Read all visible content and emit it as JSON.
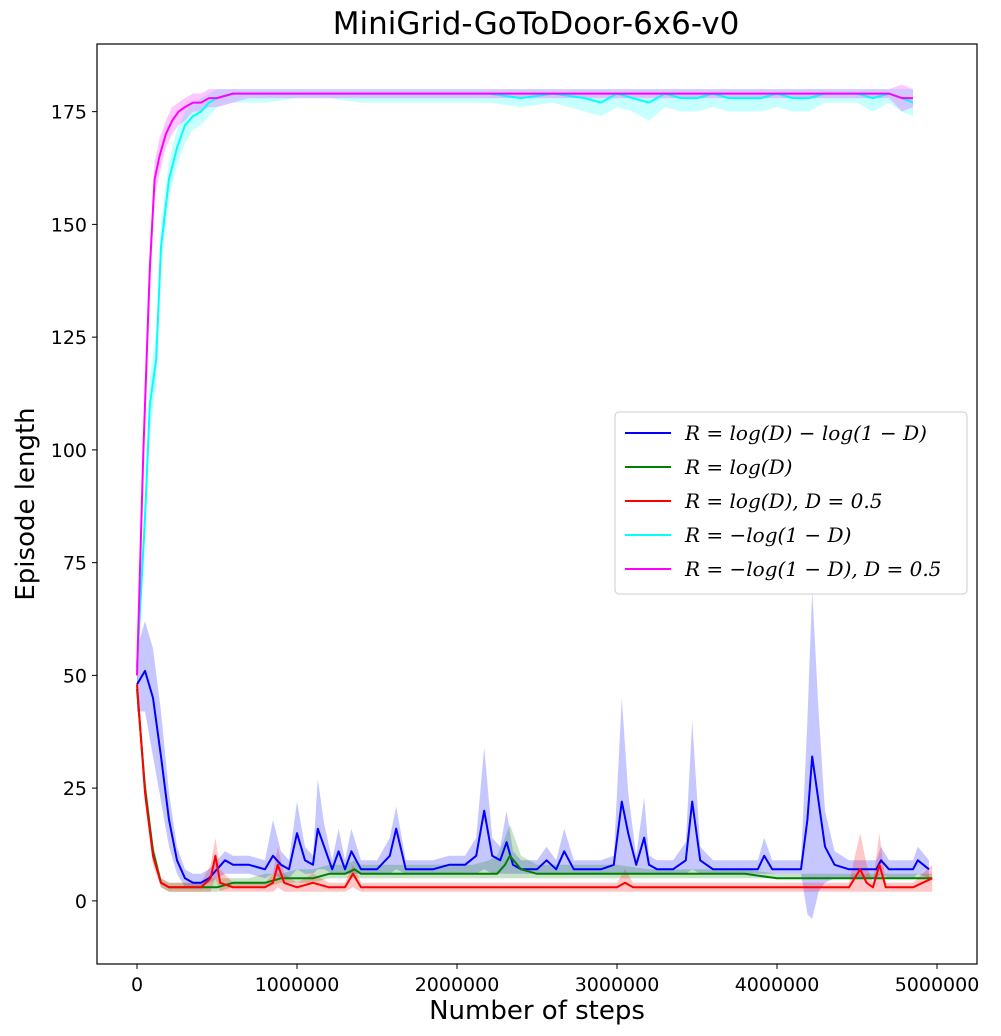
{
  "chart_data": {
    "type": "line",
    "title": "MiniGrid-GoToDoor-6x6-v0",
    "xlabel": "Number of steps",
    "ylabel": "Episode length",
    "xlim": [
      -250000,
      5250000
    ],
    "ylim": [
      -14,
      190
    ],
    "xticks": [
      0,
      1000000,
      2000000,
      3000000,
      4000000,
      5000000
    ],
    "xtick_labels": [
      "0",
      "1000000",
      "2000000",
      "3000000",
      "4000000",
      "5000000"
    ],
    "yticks": [
      0,
      25,
      50,
      75,
      100,
      125,
      150,
      175
    ],
    "ytick_labels": [
      "0",
      "25",
      "50",
      "75",
      "100",
      "125",
      "150",
      "175"
    ],
    "grid": false,
    "legend_position": "center-right",
    "series": [
      {
        "name": "R = log(D) − log(1 − D)",
        "color": "#0000ff",
        "x": [
          0,
          50000,
          100000,
          150000,
          200000,
          250000,
          300000,
          350000,
          400000,
          450000,
          500000,
          550000,
          600000,
          700000,
          800000,
          850000,
          900000,
          950000,
          1000000,
          1050000,
          1100000,
          1130000,
          1170000,
          1220000,
          1260000,
          1300000,
          1340000,
          1400000,
          1500000,
          1580000,
          1620000,
          1680000,
          1750000,
          1850000,
          1950000,
          2050000,
          2120000,
          2170000,
          2220000,
          2270000,
          2310000,
          2350000,
          2400000,
          2500000,
          2560000,
          2620000,
          2670000,
          2730000,
          2800000,
          2900000,
          2980000,
          3030000,
          3070000,
          3120000,
          3170000,
          3200000,
          3250000,
          3350000,
          3430000,
          3470000,
          3520000,
          3600000,
          3700000,
          3800000,
          3880000,
          3920000,
          3970000,
          4050000,
          4150000,
          4190000,
          4220000,
          4260000,
          4300000,
          4360000,
          4450000,
          4550000,
          4620000,
          4650000,
          4700000,
          4800000,
          4850000,
          4880000,
          4950000
        ],
        "y": [
          48,
          51,
          45,
          32,
          18,
          9,
          5,
          4,
          4,
          5,
          7,
          9,
          8,
          8,
          7,
          10,
          8,
          7,
          15,
          9,
          8,
          16,
          12,
          7,
          11,
          7,
          11,
          7,
          7,
          10,
          16,
          7,
          7,
          7,
          8,
          8,
          10,
          20,
          10,
          9,
          13,
          8,
          7,
          7,
          9,
          7,
          11,
          7,
          7,
          7,
          8,
          22,
          15,
          8,
          14,
          8,
          7,
          7,
          9,
          22,
          9,
          7,
          7,
          7,
          7,
          10,
          7,
          7,
          7,
          18,
          32,
          22,
          12,
          8,
          7,
          7,
          7,
          9,
          7,
          7,
          7,
          9,
          7
        ],
        "lower": [
          42,
          42,
          32,
          22,
          12,
          6,
          3,
          3,
          3,
          4,
          5,
          6,
          6,
          6,
          5,
          6,
          5,
          5,
          7,
          6,
          6,
          7,
          7,
          6,
          6,
          6,
          6,
          6,
          6,
          6,
          7,
          6,
          6,
          6,
          6,
          6,
          6,
          7,
          6,
          6,
          6,
          6,
          6,
          6,
          6,
          6,
          6,
          6,
          6,
          6,
          6,
          6,
          6,
          6,
          6,
          6,
          6,
          6,
          6,
          7,
          6,
          6,
          6,
          6,
          6,
          6,
          6,
          6,
          6,
          -3,
          -4,
          2,
          4,
          5,
          5,
          5,
          5,
          6,
          5,
          5,
          5,
          6,
          5
        ],
        "upper": [
          56,
          62,
          56,
          42,
          24,
          12,
          7,
          6,
          6,
          7,
          9,
          11,
          10,
          10,
          9,
          18,
          11,
          9,
          22,
          12,
          10,
          27,
          17,
          9,
          16,
          9,
          16,
          9,
          9,
          14,
          21,
          9,
          9,
          9,
          10,
          10,
          14,
          34,
          14,
          12,
          20,
          11,
          9,
          9,
          12,
          9,
          16,
          9,
          9,
          9,
          10,
          45,
          24,
          10,
          23,
          10,
          9,
          9,
          13,
          40,
          12,
          9,
          9,
          9,
          9,
          14,
          9,
          9,
          9,
          40,
          69,
          42,
          20,
          11,
          9,
          9,
          9,
          12,
          9,
          9,
          9,
          12,
          9
        ]
      },
      {
        "name": "R = log(D)",
        "color": "#008000",
        "x": [
          0,
          50000,
          100000,
          150000,
          200000,
          300000,
          400000,
          500000,
          600000,
          700000,
          800000,
          900000,
          1000000,
          1100000,
          1200000,
          1300000,
          1360000,
          1400000,
          1500000,
          1600000,
          1700000,
          1800000,
          1900000,
          2000000,
          2100000,
          2200000,
          2250000,
          2300000,
          2330000,
          2400000,
          2500000,
          2600000,
          2700000,
          2800000,
          3000000,
          3200000,
          3400000,
          3600000,
          3800000,
          4000000,
          4200000,
          4400000,
          4600000,
          4800000,
          4970000
        ],
        "y": [
          47,
          25,
          11,
          4,
          3,
          3,
          3,
          3,
          4,
          4,
          4,
          5,
          5,
          5,
          6,
          6,
          7,
          6,
          6,
          6,
          6,
          6,
          6,
          6,
          6,
          6,
          6,
          8,
          10,
          7,
          6,
          6,
          6,
          6,
          6,
          6,
          6,
          6,
          6,
          5,
          5,
          5,
          5,
          5,
          5
        ],
        "lower": [
          45,
          22,
          9,
          3,
          2,
          2,
          2,
          2,
          3,
          3,
          3,
          4,
          4,
          4,
          5,
          5,
          5,
          5,
          5,
          5,
          5,
          5,
          5,
          5,
          5,
          5,
          5,
          5,
          5,
          5,
          5,
          5,
          5,
          5,
          5,
          5,
          5,
          5,
          5,
          5,
          5,
          5,
          5,
          5,
          5
        ],
        "upper": [
          50,
          28,
          13,
          5,
          4,
          4,
          4,
          5,
          5,
          5,
          6,
          6,
          7,
          7,
          8,
          8,
          9,
          8,
          8,
          8,
          8,
          8,
          8,
          8,
          8,
          9,
          10,
          14,
          17,
          10,
          8,
          8,
          8,
          8,
          8,
          7,
          7,
          7,
          7,
          6,
          6,
          6,
          6,
          6,
          6
        ]
      },
      {
        "name": "R = log(D), D = 0.5",
        "color": "#ff0000",
        "x": [
          0,
          50000,
          100000,
          150000,
          200000,
          300000,
          400000,
          460000,
          490000,
          520000,
          600000,
          700000,
          800000,
          850000,
          880000,
          920000,
          1000000,
          1100000,
          1200000,
          1300000,
          1350000,
          1400000,
          1500000,
          1700000,
          1900000,
          2100000,
          2200000,
          2300000,
          2500000,
          2700000,
          2900000,
          3000000,
          3050000,
          3100000,
          3300000,
          3500000,
          3700000,
          3900000,
          4100000,
          4300000,
          4450000,
          4520000,
          4560000,
          4600000,
          4640000,
          4680000,
          4750000,
          4850000,
          4970000
        ],
        "y": [
          48,
          24,
          10,
          4,
          3,
          3,
          3,
          5,
          10,
          4,
          3,
          3,
          3,
          4,
          8,
          4,
          3,
          4,
          3,
          3,
          6,
          3,
          3,
          3,
          3,
          3,
          3,
          3,
          3,
          3,
          3,
          3,
          4,
          3,
          3,
          3,
          3,
          3,
          3,
          3,
          3,
          7,
          4,
          3,
          8,
          3,
          3,
          3,
          5
        ],
        "lower": [
          46,
          22,
          8,
          3,
          2,
          2,
          2,
          2,
          5,
          2,
          2,
          2,
          2,
          2,
          3,
          2,
          2,
          2,
          2,
          2,
          3,
          2,
          2,
          2,
          2,
          2,
          2,
          2,
          2,
          2,
          2,
          2,
          2,
          2,
          2,
          2,
          2,
          2,
          2,
          2,
          2,
          2,
          2,
          2,
          2,
          2,
          2,
          2,
          2
        ],
        "upper": [
          51,
          27,
          12,
          5,
          4,
          4,
          4,
          8,
          14,
          7,
          4,
          4,
          4,
          6,
          12,
          6,
          4,
          6,
          4,
          4,
          8,
          4,
          4,
          4,
          4,
          4,
          4,
          4,
          4,
          4,
          4,
          4,
          7,
          4,
          4,
          4,
          4,
          4,
          4,
          4,
          4,
          15,
          8,
          4,
          15,
          4,
          4,
          4,
          8
        ]
      },
      {
        "name": "R = −log(1 − D)",
        "color": "#00ffff",
        "x": [
          0,
          50000,
          80000,
          120000,
          150000,
          200000,
          250000,
          300000,
          350000,
          400000,
          450000,
          500000,
          600000,
          700000,
          800000,
          1000000,
          1200000,
          1400000,
          1600000,
          1800000,
          2000000,
          2200000,
          2400000,
          2600000,
          2800000,
          2900000,
          3000000,
          3100000,
          3200000,
          3300000,
          3400000,
          3500000,
          3600000,
          3700000,
          3800000,
          3900000,
          4000000,
          4100000,
          4200000,
          4300000,
          4400000,
          4500000,
          4600000,
          4700000,
          4780000,
          4850000
        ],
        "y": [
          52,
          85,
          110,
          120,
          145,
          160,
          167,
          172,
          174,
          175,
          177,
          178,
          179,
          179,
          179,
          179,
          179,
          179,
          179,
          179,
          179,
          179,
          178,
          179,
          178,
          177,
          179,
          178,
          177,
          179,
          178,
          178,
          179,
          178,
          178,
          178,
          179,
          178,
          178,
          179,
          179,
          179,
          178,
          179,
          178,
          177
        ],
        "lower": [
          50,
          80,
          104,
          114,
          140,
          156,
          163,
          168,
          171,
          172,
          174,
          176,
          177,
          177,
          177,
          178,
          178,
          177,
          177,
          177,
          177,
          177,
          176,
          177,
          175,
          174,
          176,
          175,
          173,
          176,
          175,
          175,
          176,
          175,
          175,
          175,
          176,
          175,
          175,
          177,
          177,
          177,
          175,
          177,
          175,
          174
        ],
        "upper": [
          54,
          90,
          116,
          126,
          150,
          164,
          171,
          175,
          177,
          178,
          179,
          180,
          180,
          180,
          180,
          180,
          180,
          180,
          180,
          180,
          180,
          180,
          180,
          180,
          180,
          180,
          180,
          180,
          180,
          180,
          180,
          180,
          180,
          180,
          180,
          180,
          180,
          180,
          180,
          180,
          180,
          180,
          180,
          180,
          180,
          180
        ]
      },
      {
        "name": "R = −log(1 − D), D = 0.5",
        "color": "#ff00ff",
        "x": [
          0,
          40000,
          80000,
          110000,
          140000,
          180000,
          220000,
          260000,
          300000,
          350000,
          400000,
          450000,
          500000,
          600000,
          700000,
          800000,
          1000000,
          1200000,
          1400000,
          1600000,
          1800000,
          2000000,
          2200000,
          2400000,
          2600000,
          2800000,
          3000000,
          3200000,
          3400000,
          3600000,
          3800000,
          4000000,
          4200000,
          4400000,
          4600000,
          4700000,
          4780000,
          4850000
        ],
        "y": [
          50,
          100,
          140,
          160,
          165,
          170,
          173,
          175,
          176,
          177,
          177,
          178,
          178,
          179,
          179,
          179,
          179,
          179,
          179,
          179,
          179,
          179,
          179,
          179,
          179,
          179,
          179,
          179,
          179,
          179,
          179,
          179,
          179,
          179,
          179,
          179,
          178,
          178
        ],
        "lower": [
          48,
          96,
          135,
          156,
          161,
          167,
          170,
          172,
          173,
          175,
          175,
          176,
          176,
          177,
          178,
          178,
          178,
          178,
          178,
          178,
          178,
          178,
          178,
          178,
          178,
          178,
          178,
          178,
          178,
          178,
          178,
          178,
          178,
          178,
          178,
          178,
          175,
          176
        ],
        "upper": [
          52,
          104,
          145,
          164,
          169,
          173,
          176,
          177,
          178,
          179,
          179,
          180,
          180,
          180,
          180,
          180,
          180,
          180,
          180,
          180,
          180,
          180,
          180,
          180,
          180,
          180,
          180,
          180,
          180,
          180,
          180,
          180,
          180,
          180,
          180,
          180,
          181,
          180
        ]
      }
    ]
  }
}
